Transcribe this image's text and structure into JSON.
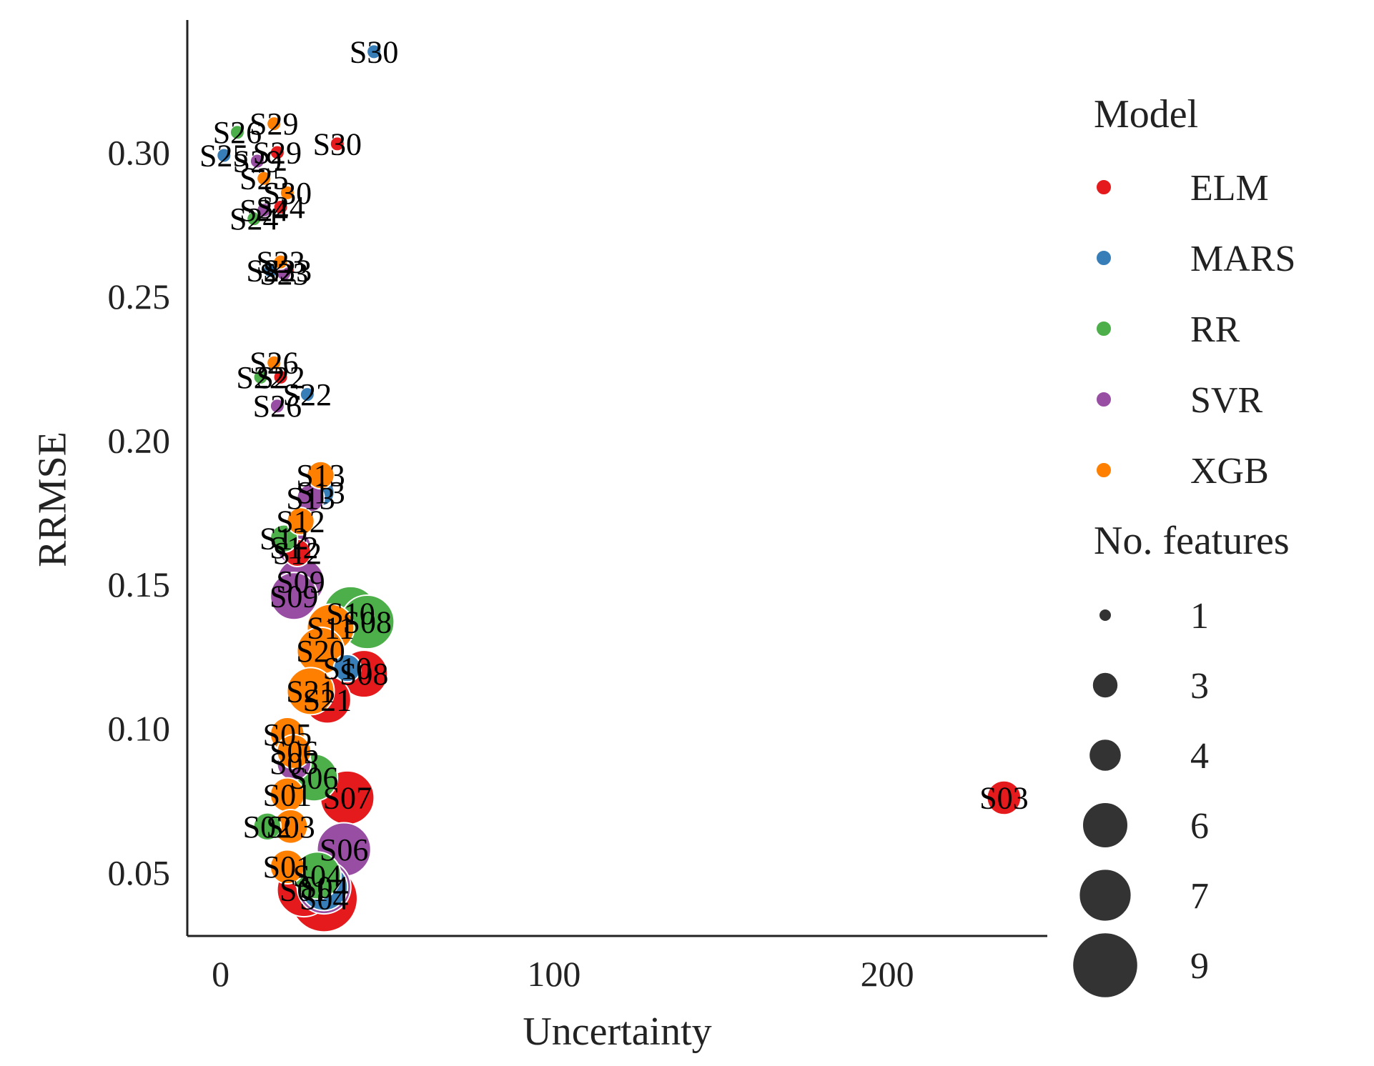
{
  "chart_data": {
    "type": "scatter",
    "xlabel": "Uncertainty",
    "ylabel": "RRMSE",
    "xlim": [
      -10,
      248
    ],
    "ylim": [
      0.028,
      0.346
    ],
    "xticks": [
      0,
      100,
      200
    ],
    "yticks": [
      0.05,
      0.1,
      0.15,
      0.2,
      0.25,
      0.3
    ],
    "x_tick_labels": [
      "0",
      "100",
      "200"
    ],
    "y_tick_labels": [
      "0.05",
      "0.10",
      "0.15",
      "0.20",
      "0.25",
      "0.30"
    ],
    "grid": false,
    "legend_position": "right",
    "hue_legend": {
      "title": "Model",
      "entries": [
        {
          "label": "ELM",
          "color": "#e41a1c"
        },
        {
          "label": "MARS",
          "color": "#377eb8"
        },
        {
          "label": "RR",
          "color": "#4daf4a"
        },
        {
          "label": "SVR",
          "color": "#984ea3"
        },
        {
          "label": "XGB",
          "color": "#ff7f00"
        }
      ]
    },
    "size_legend": {
      "title": "No. features",
      "entries": [
        {
          "label": "1",
          "value": 1
        },
        {
          "label": "3",
          "value": 3
        },
        {
          "label": "4",
          "value": 4
        },
        {
          "label": "6",
          "value": 6
        },
        {
          "label": "7",
          "value": 7
        },
        {
          "label": "9",
          "value": 9
        }
      ]
    },
    "series": [
      {
        "name": "ELM",
        "points": [
          {
            "x": 35,
            "y": 0.303,
            "label": "S30",
            "size": 1
          },
          {
            "x": 17,
            "y": 0.3,
            "label": "S29",
            "size": 1
          },
          {
            "x": 18,
            "y": 0.281,
            "label": "S24",
            "size": 1
          },
          {
            "x": 20,
            "y": 0.259,
            "label": "S23",
            "size": 1
          },
          {
            "x": 18,
            "y": 0.222,
            "label": "S22",
            "size": 1
          },
          {
            "x": 23,
            "y": 0.161,
            "label": "S12",
            "size": 3
          },
          {
            "x": 43,
            "y": 0.119,
            "label": "S08",
            "size": 6
          },
          {
            "x": 32,
            "y": 0.11,
            "label": "S21",
            "size": 6
          },
          {
            "x": 235,
            "y": 0.076,
            "label": "S03",
            "size": 4
          },
          {
            "x": 38,
            "y": 0.076,
            "label": "S07",
            "size": 7
          },
          {
            "x": 25,
            "y": 0.044,
            "label": "S01",
            "size": 7
          },
          {
            "x": 31,
            "y": 0.041,
            "label": "S04",
            "size": 9
          }
        ]
      },
      {
        "name": "MARS",
        "points": [
          {
            "x": 46,
            "y": 0.335,
            "label": "S30",
            "size": 1
          },
          {
            "x": 1,
            "y": 0.299,
            "label": "S25",
            "size": 1
          },
          {
            "x": 15,
            "y": 0.259,
            "label": "S23",
            "size": 1
          },
          {
            "x": 26,
            "y": 0.216,
            "label": "S22",
            "size": 1
          },
          {
            "x": 30,
            "y": 0.182,
            "label": "S13",
            "size": 3
          },
          {
            "x": 38,
            "y": 0.121,
            "label": "S10",
            "size": 3
          },
          {
            "x": 31,
            "y": 0.045,
            "label": "S04",
            "size": 6
          }
        ]
      },
      {
        "name": "RR",
        "points": [
          {
            "x": 5,
            "y": 0.307,
            "label": "S26",
            "size": 1
          },
          {
            "x": 10,
            "y": 0.277,
            "label": "S24",
            "size": 1
          },
          {
            "x": 12,
            "y": 0.222,
            "label": "S22",
            "size": 1
          },
          {
            "x": 19,
            "y": 0.166,
            "label": "S12",
            "size": 3
          },
          {
            "x": 39,
            "y": 0.14,
            "label": "S10",
            "size": 7
          },
          {
            "x": 44,
            "y": 0.137,
            "label": "S08",
            "size": 7
          },
          {
            "x": 28,
            "y": 0.083,
            "label": "S06",
            "size": 6
          },
          {
            "x": 14,
            "y": 0.066,
            "label": "S02",
            "size": 3
          },
          {
            "x": 29,
            "y": 0.049,
            "label": "S04",
            "size": 6
          }
        ]
      },
      {
        "name": "SVR",
        "points": [
          {
            "x": 11,
            "y": 0.297,
            "label": "S29",
            "size": 1
          },
          {
            "x": 13,
            "y": 0.28,
            "label": "S24",
            "size": 1
          },
          {
            "x": 19,
            "y": 0.258,
            "label": "S23",
            "size": 1
          },
          {
            "x": 17,
            "y": 0.212,
            "label": "S26",
            "size": 1
          },
          {
            "x": 27,
            "y": 0.18,
            "label": "S13",
            "size": 3
          },
          {
            "x": 22,
            "y": 0.163,
            "label": "S12",
            "size": 4
          },
          {
            "x": 24,
            "y": 0.151,
            "label": "S09",
            "size": 6
          },
          {
            "x": 22,
            "y": 0.146,
            "label": "S09",
            "size": 6
          },
          {
            "x": 22,
            "y": 0.088,
            "label": "S05",
            "size": 4
          },
          {
            "x": 37,
            "y": 0.058,
            "label": "S06",
            "size": 7
          },
          {
            "x": 31,
            "y": 0.045,
            "label": "S04",
            "size": 7
          }
        ]
      },
      {
        "name": "XGB",
        "points": [
          {
            "x": 16,
            "y": 0.31,
            "label": "S29",
            "size": 1
          },
          {
            "x": 13,
            "y": 0.291,
            "label": "S25",
            "size": 1
          },
          {
            "x": 20,
            "y": 0.286,
            "label": "S30",
            "size": 1
          },
          {
            "x": 18,
            "y": 0.262,
            "label": "S23",
            "size": 1
          },
          {
            "x": 16,
            "y": 0.227,
            "label": "S26",
            "size": 1
          },
          {
            "x": 30,
            "y": 0.188,
            "label": "S13",
            "size": 3
          },
          {
            "x": 24,
            "y": 0.172,
            "label": "S12",
            "size": 3
          },
          {
            "x": 33,
            "y": 0.135,
            "label": "S11",
            "size": 6
          },
          {
            "x": 30,
            "y": 0.127,
            "label": "S20",
            "size": 6
          },
          {
            "x": 27,
            "y": 0.113,
            "label": "S21",
            "size": 6
          },
          {
            "x": 20,
            "y": 0.098,
            "label": "S05",
            "size": 4
          },
          {
            "x": 22,
            "y": 0.092,
            "label": "S06",
            "size": 4
          },
          {
            "x": 20,
            "y": 0.077,
            "label": "S01",
            "size": 4
          },
          {
            "x": 21,
            "y": 0.066,
            "label": "S03",
            "size": 4
          },
          {
            "x": 20,
            "y": 0.052,
            "label": "S01",
            "size": 4
          }
        ]
      }
    ]
  }
}
